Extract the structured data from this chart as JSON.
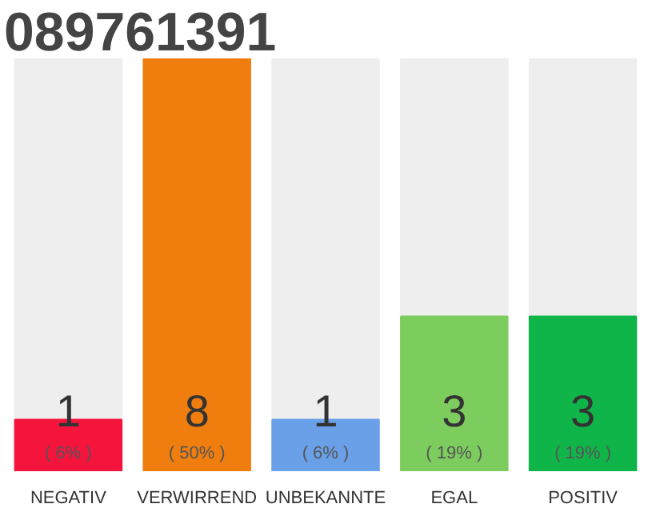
{
  "chart_data": {
    "type": "bar",
    "title": "089761391",
    "categories": [
      "NEGATIV",
      "VERWIRREND",
      "UNBEKANNTE",
      "EGAL",
      "POSITIV"
    ],
    "values": [
      1,
      8,
      1,
      3,
      3
    ],
    "colors": [
      "#f5143c",
      "#f07e0e",
      "#6aa0e8",
      "#7dcc5e",
      "#10b54a"
    ],
    "data_labels": true,
    "annotations": [
      "( 6% )",
      "( 50% )",
      "( 6% )",
      "( 19% )",
      "( 19% )"
    ],
    "grid": false
  }
}
